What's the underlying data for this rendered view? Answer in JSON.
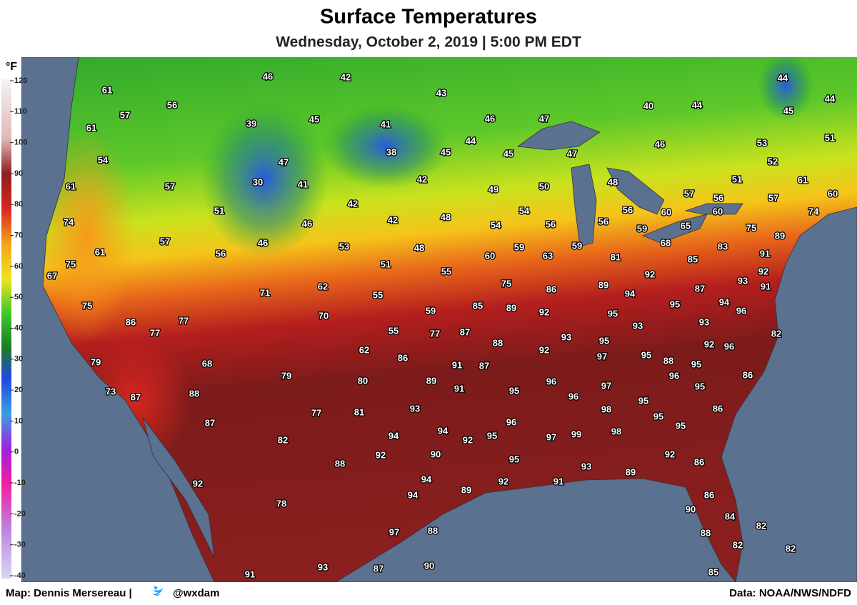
{
  "header": {
    "title": "Surface Temperatures",
    "subtitle": "Wednesday, October 2, 2019 | 5:00 PM EDT"
  },
  "legend": {
    "unit": "°F",
    "ticks": [
      120,
      110,
      100,
      90,
      80,
      70,
      60,
      50,
      40,
      30,
      20,
      10,
      0,
      -10,
      -20,
      -30,
      -40
    ]
  },
  "stations": [
    61,
    56,
    57,
    61,
    39,
    45,
    46,
    42,
    43,
    41,
    46,
    44,
    47,
    40,
    44,
    44,
    45,
    44,
    51,
    53,
    52,
    46,
    47,
    45,
    45,
    38,
    54,
    47,
    30,
    41,
    57,
    61,
    42,
    49,
    50,
    48,
    51,
    61,
    60,
    57,
    56,
    57,
    42,
    51,
    54,
    56,
    60,
    60,
    74,
    74,
    42,
    48,
    46,
    54,
    56,
    56,
    59,
    65,
    75,
    89,
    57,
    46,
    53,
    48,
    60,
    59,
    63,
    59,
    68,
    83,
    61,
    56,
    51,
    55,
    81,
    85,
    91,
    75,
    67,
    92,
    92,
    93,
    91,
    71,
    62,
    75,
    86,
    89,
    94,
    87,
    55,
    59,
    85,
    89,
    92,
    95,
    95,
    94,
    96,
    75,
    86,
    70,
    77,
    93,
    93,
    77,
    55,
    77,
    87,
    88,
    93,
    95,
    82,
    92,
    96,
    62,
    86,
    91,
    87,
    92,
    97,
    95,
    88,
    95,
    79,
    68,
    79,
    80,
    89,
    96,
    86,
    73,
    87,
    88,
    91,
    95,
    96,
    97,
    95,
    96,
    77,
    81,
    93,
    98,
    95,
    95,
    86,
    96,
    87,
    94,
    94,
    92,
    95,
    97,
    99,
    98,
    95,
    82,
    92,
    90,
    95,
    92,
    86,
    88,
    93,
    89,
    92,
    94,
    92,
    91,
    94,
    89,
    86,
    78,
    90,
    84,
    82,
    97,
    88,
    88,
    82,
    82,
    91,
    93,
    87,
    90,
    85
  ],
  "footer": {
    "credit": "Map: Dennis Mersereau |",
    "handle": "@wxdam",
    "source": "Data: NOAA/NWS/NDFD"
  }
}
